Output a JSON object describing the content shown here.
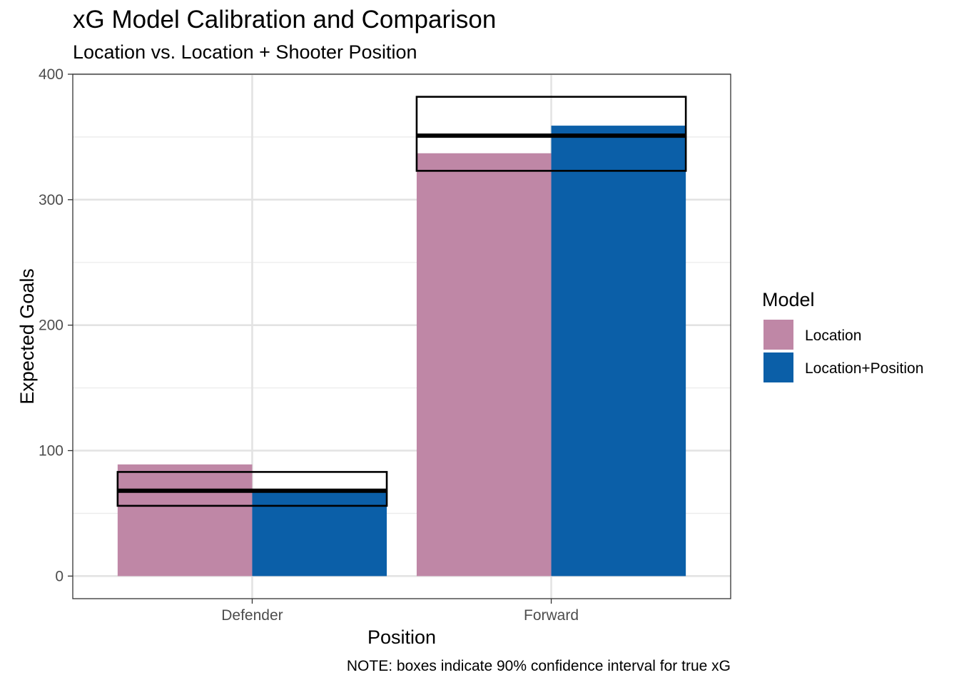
{
  "chart_data": {
    "type": "bar",
    "title": "xG Model Calibration and Comparison",
    "subtitle": "Location vs. Location + Shooter Position",
    "xlabel": "Position",
    "ylabel": "Expected Goals",
    "caption": "NOTE: boxes indicate 90% confidence interval for true xG",
    "categories": [
      "Defender",
      "Forward"
    ],
    "series": [
      {
        "name": "Location",
        "values": [
          89,
          337
        ],
        "color": "#BF87A6"
      },
      {
        "name": "Location+Position",
        "values": [
          68,
          359
        ],
        "color": "#0B5FA8"
      }
    ],
    "intervals": [
      {
        "category": "Defender",
        "point": 68,
        "low": 56,
        "high": 83
      },
      {
        "category": "Forward",
        "point": 351,
        "low": 323,
        "high": 382
      }
    ],
    "ylim": [
      -18,
      400
    ],
    "yticks": [
      0,
      100,
      200,
      300,
      400
    ],
    "grid": true,
    "legend": {
      "title": "Model",
      "position": "right",
      "entries": [
        "Location",
        "Location+Position"
      ]
    }
  }
}
